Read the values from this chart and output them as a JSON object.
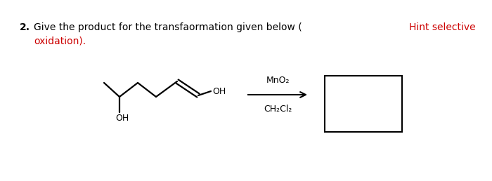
{
  "background_color": "#ffffff",
  "question_number": "2.",
  "question_text": "Give the product for the transfaormation given below (",
  "hint_text": "Hint selective",
  "hint_color": "#cc0000",
  "oxidation_text": "oxidation).",
  "oxidation_color": "#cc0000",
  "reagent_top": "MnO₂",
  "reagent_bottom": "CH₂Cl₂",
  "label_OH_right": "OH",
  "label_OH_bottom": "OH",
  "text_fontsize": 10,
  "mol_fontsize": 9,
  "arrow_color": "#000000",
  "line_color": "#000000",
  "line_lw": 1.6
}
